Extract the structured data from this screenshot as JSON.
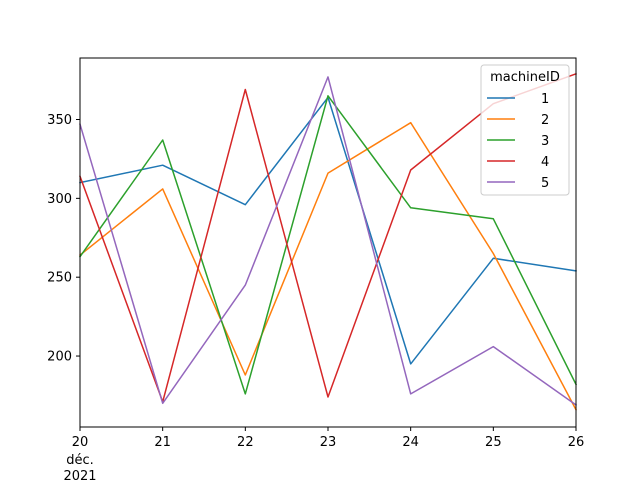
{
  "chart_data": {
    "type": "line",
    "x": [
      "20",
      "21",
      "22",
      "23",
      "24",
      "25",
      "26"
    ],
    "x_sublabels": [
      "déc.",
      "2021"
    ],
    "legend": {
      "title": "machineID",
      "placement": "upper-right"
    },
    "series": [
      {
        "name": "1",
        "color": "#1f77b4",
        "values": [
          310,
          321,
          296,
          364,
          195,
          262,
          254
        ]
      },
      {
        "name": "2",
        "color": "#ff7f0e",
        "values": [
          264,
          306,
          188,
          316,
          348,
          265,
          166
        ]
      },
      {
        "name": "3",
        "color": "#2ca02c",
        "values": [
          263,
          337,
          176,
          365,
          294,
          287,
          182
        ]
      },
      {
        "name": "4",
        "color": "#d62728",
        "values": [
          314,
          171,
          369,
          174,
          318,
          360,
          379
        ]
      },
      {
        "name": "5",
        "color": "#9467bd",
        "values": [
          347,
          170,
          245,
          377,
          176,
          206,
          169
        ]
      }
    ],
    "y_ticks": [
      200,
      250,
      300,
      350
    ],
    "ylim": [
      155,
      389
    ],
    "grid": false
  }
}
